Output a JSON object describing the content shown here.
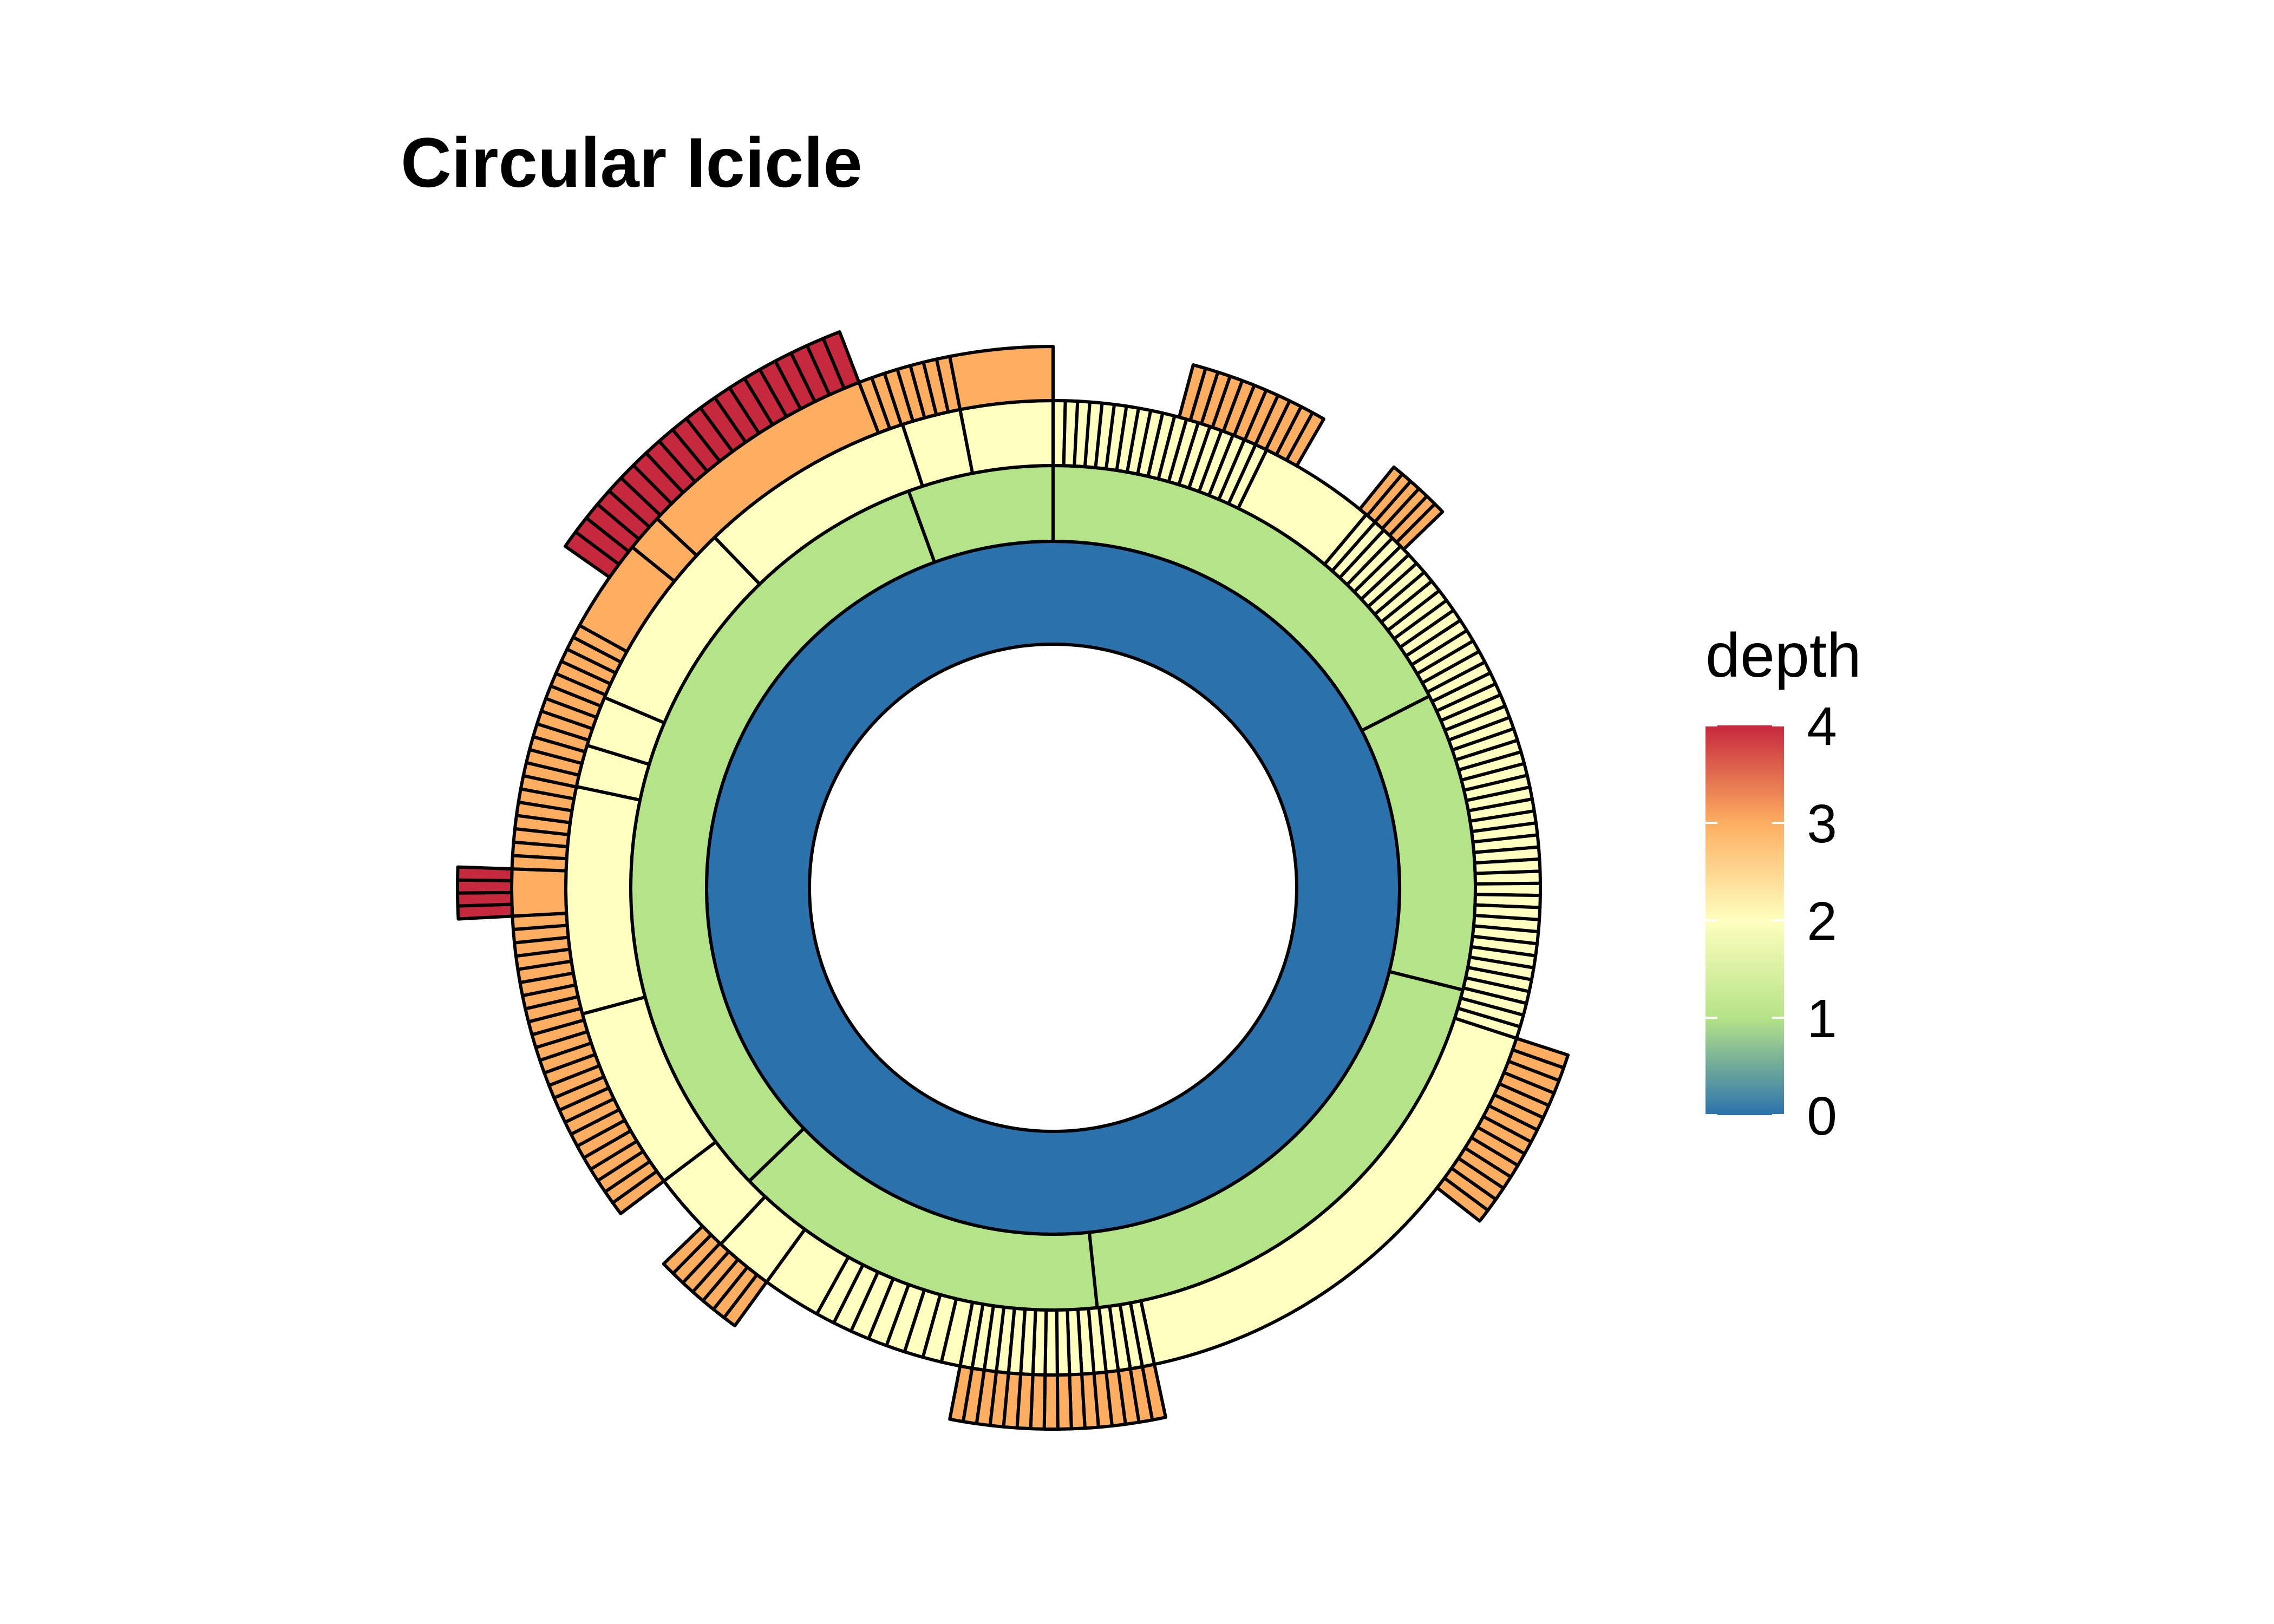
{
  "chart_data": {
    "type": "sunburst",
    "title": "Circular Icicle",
    "color_scale": {
      "name": "depth",
      "min": 0,
      "max": 4,
      "ticks": [
        "0",
        "1",
        "2",
        "3",
        "4"
      ],
      "stops": [
        {
          "value": 0,
          "color": "#2b72ad"
        },
        {
          "value": 1,
          "color": "#b5e387"
        },
        {
          "value": 2,
          "color": "#ffffbf"
        },
        {
          "value": 3,
          "color": "#fdae61"
        },
        {
          "value": 4,
          "color": "#c6283d"
        }
      ]
    },
    "start_angle_deg": 0,
    "direction": "clockwise",
    "levels": [
      {
        "depth": 0,
        "segments": [
          {
            "from": 0,
            "to": 360
          }
        ]
      },
      {
        "depth": 1,
        "segments": [
          {
            "from": 0,
            "to": 63
          },
          {
            "from": 63,
            "to": 104
          },
          {
            "from": 104,
            "to": 174
          },
          {
            "from": 174,
            "to": 226
          },
          {
            "from": 226,
            "to": 340
          },
          {
            "from": 340,
            "to": 360
          }
        ]
      },
      {
        "depth": 2,
        "segments": [
          {
            "from": 0,
            "to": 26,
            "children": 18
          },
          {
            "from": 26,
            "to": 40
          },
          {
            "from": 40,
            "to": 51,
            "children": 8
          },
          {
            "from": 51,
            "to": 108,
            "children": 40
          },
          {
            "from": 108,
            "to": 168
          },
          {
            "from": 168,
            "to": 191,
            "children": 16
          },
          {
            "from": 191,
            "to": 209,
            "children": 8
          },
          {
            "from": 209,
            "to": 216
          },
          {
            "from": 216,
            "to": 223
          },
          {
            "from": 223,
            "to": 233
          },
          {
            "from": 233,
            "to": 255
          },
          {
            "from": 255,
            "to": 282
          },
          {
            "from": 282,
            "to": 287
          },
          {
            "from": 287,
            "to": 293
          },
          {
            "from": 293,
            "to": 316
          },
          {
            "from": 316,
            "to": 342
          },
          {
            "from": 342,
            "to": 349
          },
          {
            "from": 349,
            "to": 360
          }
        ]
      },
      {
        "depth": 3,
        "segments": [
          {
            "from": 15,
            "to": 30,
            "children": 11
          },
          {
            "from": 39,
            "to": 46,
            "children": 6
          },
          {
            "from": 108,
            "to": 128,
            "children": 14
          },
          {
            "from": 168,
            "to": 191,
            "children": 16
          },
          {
            "from": 216,
            "to": 226,
            "children": 7
          },
          {
            "from": 233,
            "to": 267,
            "children": 24
          },
          {
            "from": 267,
            "to": 272
          },
          {
            "from": 272,
            "to": 299,
            "children": 19
          },
          {
            "from": 299,
            "to": 309
          },
          {
            "from": 309,
            "to": 313
          },
          {
            "from": 313,
            "to": 339
          },
          {
            "from": 339,
            "to": 349,
            "children": 7
          },
          {
            "from": 349,
            "to": 360
          }
        ]
      },
      {
        "depth": 4,
        "segments": [
          {
            "from": 267,
            "to": 272,
            "children": 4
          },
          {
            "from": 305,
            "to": 339,
            "children": 20
          }
        ]
      }
    ]
  }
}
